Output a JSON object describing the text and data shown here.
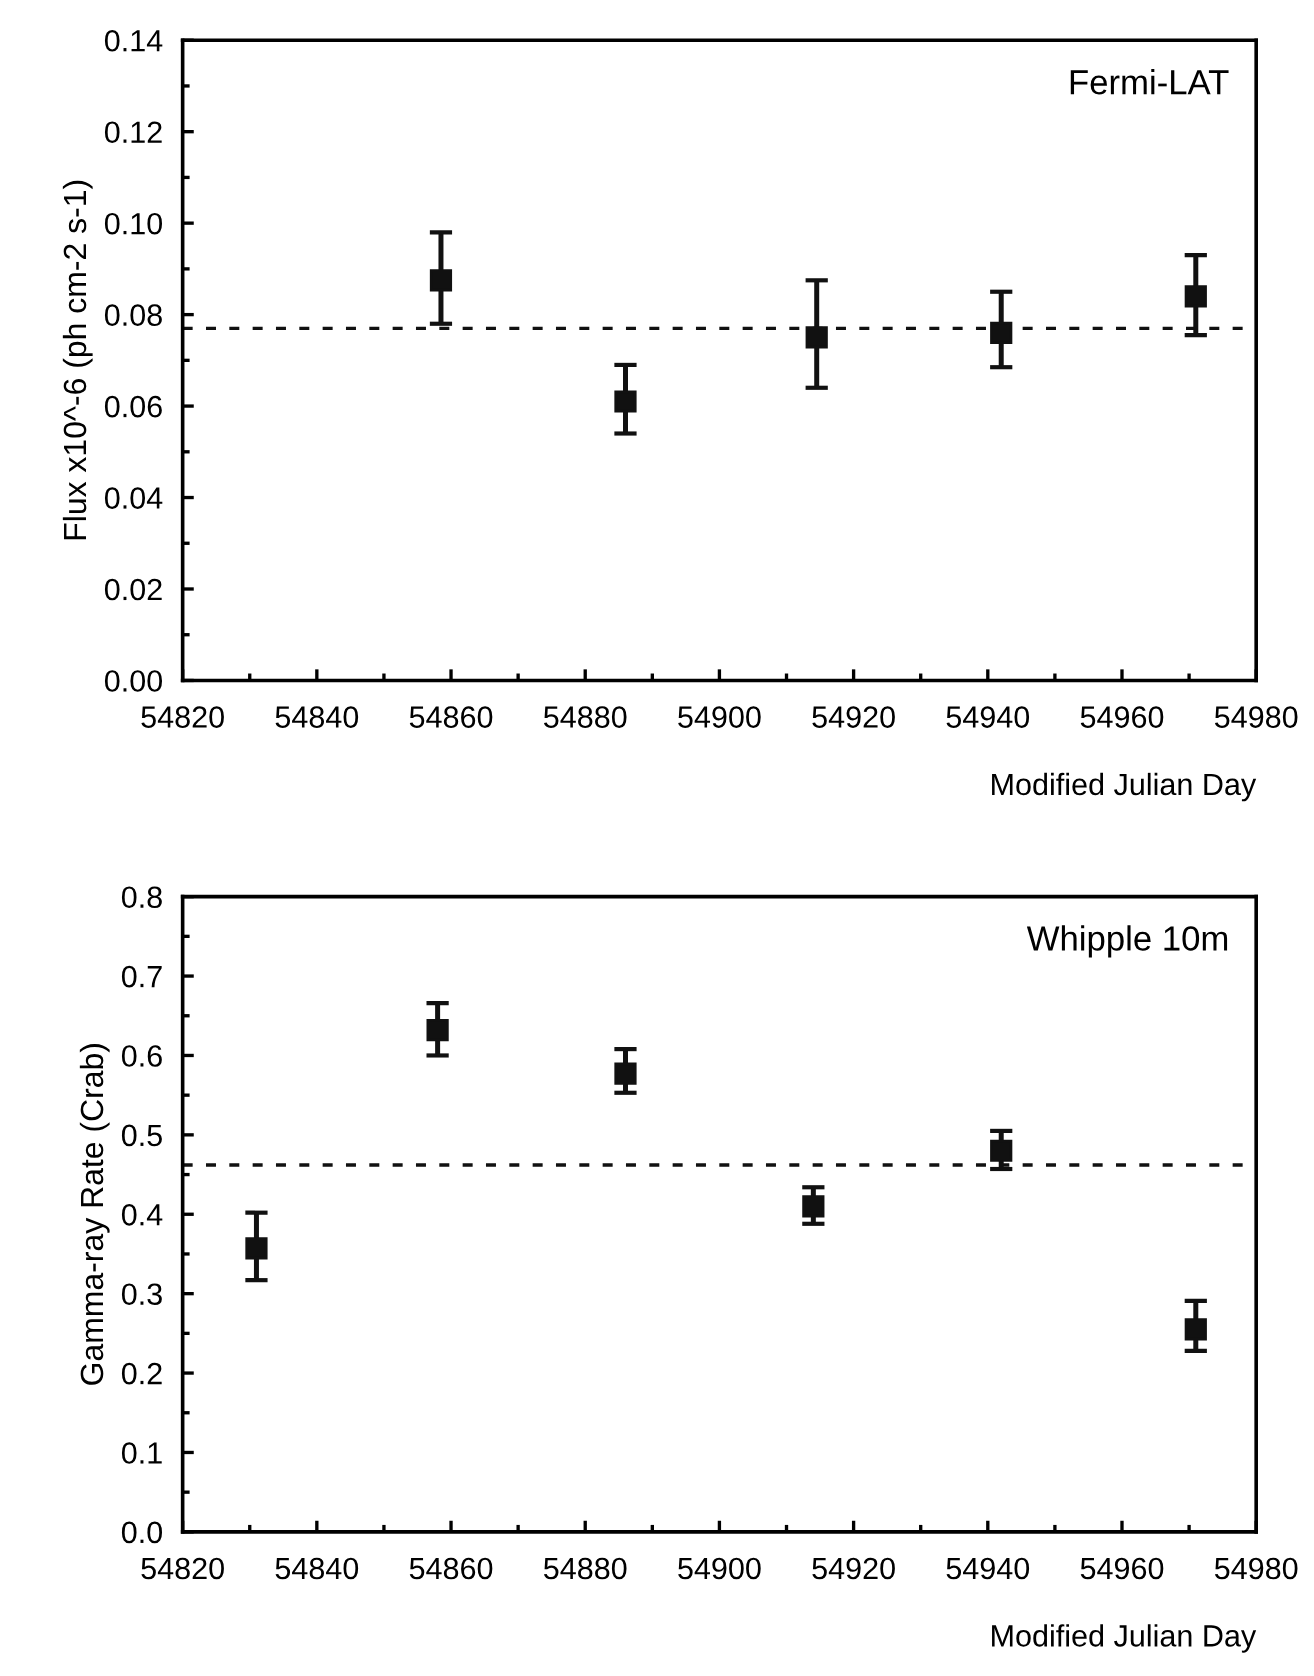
{
  "chart_data": [
    {
      "type": "scatter",
      "xlabel": "Modified Julian Day",
      "ylabel": "Flux x10^-6 (ph cm-2 s-1)",
      "annotations": [
        "Fermi-LAT"
      ],
      "marker": "square",
      "grid": false,
      "series": [
        {
          "color": "#111111",
          "x": [
            54858.5,
            54886,
            54914.5,
            54942,
            54971
          ],
          "values": [
            0.0875,
            0.061,
            0.075,
            0.076,
            0.084
          ],
          "errors": [
            [
              0.078,
              0.098
            ],
            [
              0.054,
              0.069
            ],
            [
              0.064,
              0.0875
            ],
            [
              0.0685,
              0.085
            ],
            [
              0.0755,
              0.093
            ]
          ]
        }
      ],
      "ref_lines": [
        {
          "axis": "y",
          "value": 0.077,
          "line_style": "dashed",
          "color": "#111111"
        }
      ],
      "xlim": [
        54820,
        54980
      ],
      "ylim": [
        0,
        0.14
      ],
      "xticks": [
        54820,
        {
          "value": 54830,
          "label": null
        },
        54840,
        {
          "value": 54850,
          "label": null
        },
        54860,
        {
          "value": 54870,
          "label": null
        },
        54880,
        {
          "value": 54890,
          "label": null
        },
        54900,
        {
          "value": 54910,
          "label": null
        },
        54920,
        {
          "value": 54930,
          "label": null
        },
        54940,
        {
          "value": 54950,
          "label": null
        },
        54960,
        {
          "value": 54970,
          "label": null
        },
        54980
      ],
      "yticks": [
        {
          "value": 0,
          "label": "0.00"
        },
        {
          "value": 0.01,
          "label": null
        },
        {
          "value": 0.02,
          "label": "0.02"
        },
        {
          "value": 0.03,
          "label": null
        },
        {
          "value": 0.04,
          "label": "0.04"
        },
        {
          "value": 0.05,
          "label": null
        },
        {
          "value": 0.06,
          "label": "0.06"
        },
        {
          "value": 0.07,
          "label": null
        },
        {
          "value": 0.08,
          "label": "0.08"
        },
        {
          "value": 0.09,
          "label": null
        },
        {
          "value": 0.1,
          "label": "0.10"
        },
        {
          "value": 0.11,
          "label": null
        },
        {
          "value": 0.12,
          "label": "0.12"
        },
        {
          "value": 0.13,
          "label": null
        },
        0.14
      ]
    },
    {
      "type": "scatter",
      "xlabel": "Modified Julian Day",
      "ylabel": "Gamma-ray Rate (Crab)",
      "annotations": [
        "Whipple 10m"
      ],
      "marker": "square",
      "grid": false,
      "series": [
        {
          "color": "#111111",
          "x": [
            54831,
            54858,
            54886,
            54914,
            54942,
            54971
          ],
          "values": [
            0.357,
            0.632,
            0.577,
            0.41,
            0.48,
            0.255
          ],
          "errors": [
            [
              0.317,
              0.402
            ],
            [
              0.6,
              0.666
            ],
            [
              0.553,
              0.608
            ],
            [
              0.388,
              0.434
            ],
            [
              0.457,
              0.505
            ],
            [
              0.228,
              0.291
            ]
          ]
        }
      ],
      "ref_lines": [
        {
          "axis": "y",
          "value": 0.462,
          "line_style": "dashed",
          "color": "#111111"
        }
      ],
      "xlim": [
        54820,
        54980
      ],
      "ylim": [
        0,
        0.8
      ],
      "xticks": [
        54820,
        {
          "value": 54830,
          "label": null
        },
        54840,
        {
          "value": 54850,
          "label": null
        },
        54860,
        {
          "value": 54870,
          "label": null
        },
        54880,
        {
          "value": 54890,
          "label": null
        },
        54900,
        {
          "value": 54910,
          "label": null
        },
        54920,
        {
          "value": 54930,
          "label": null
        },
        54940,
        {
          "value": 54950,
          "label": null
        },
        54960,
        {
          "value": 54970,
          "label": null
        },
        54980
      ],
      "yticks": [
        {
          "value": 0,
          "label": "0.0"
        },
        {
          "value": 0.05,
          "label": null
        },
        0.1,
        {
          "value": 0.15,
          "label": null
        },
        0.2,
        {
          "value": 0.25,
          "label": null
        },
        0.3,
        {
          "value": 0.35,
          "label": null
        },
        0.4,
        {
          "value": 0.45,
          "label": null
        },
        0.5,
        {
          "value": 0.55,
          "label": null
        },
        0.6,
        {
          "value": 0.65,
          "label": null
        },
        0.7,
        {
          "value": 0.75,
          "label": null
        },
        0.8
      ]
    }
  ]
}
